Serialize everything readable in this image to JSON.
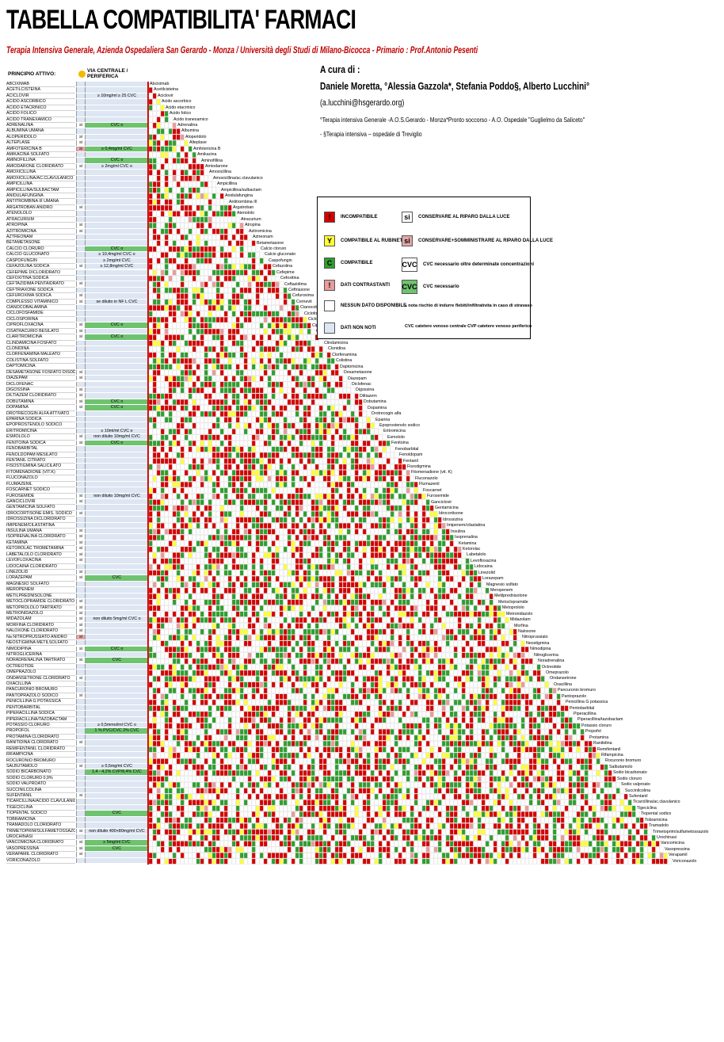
{
  "header": {
    "title": "TABELLA COMPATIBILITA' FARMACI",
    "subtitle": "Terapia Intensiva Generale, Azienda Ospedaliera San Gerardo - Monza / Università degli Studi di Milano-Bicocca - Primario : Prof.Antonio Pesenti"
  },
  "authors": {
    "label": "A cura di  :",
    "names": "Daniele Moretta, °Alessia Gazzola*, Stefania Poddo§, Alberto Lucchini°",
    "email": "(a.lucchini@hsgerardo.org)",
    "affiliation": "°Terapia intensiva Generale -A.O.S.Gerardo - Monza*Pronto soccorso - A.O. Ospedale \"Guglielmo da Saliceto\" - §Terapia intensiva – ospedale di Treviglio"
  },
  "columns": {
    "principle": "PRINCIPIO ATTIVO:",
    "route": "VIA CENTRALE / PERIFERICA"
  },
  "legend": {
    "items": [
      {
        "symbol": "!",
        "text": "INCOMPATIBILE",
        "color": "#d40000"
      },
      {
        "symbol": "Y",
        "text": "COMPATIBILE AL RUBINETTO",
        "color": "#ffff33"
      },
      {
        "symbol": "C",
        "text": "COMPATIBILE",
        "color": "#2e9e2e"
      },
      {
        "symbol": "!",
        "text": "DATI CONTRASTANTI",
        "color": "#e89b9b"
      },
      {
        "symbol": "",
        "text": "NESSUN DATO DISPONIBILE",
        "color": "#ffffff"
      },
      {
        "symbol": "",
        "text": "DATI NON NOTI",
        "color": "#dde6f2"
      },
      {
        "symbol": "si",
        "text": "CONSERVARE AL RIPARO DALLA LUCE",
        "color": "#ffffff"
      },
      {
        "symbol": "si",
        "text": "CONSERVARE+SOMMINISTRARE AL RIPARO DALLA LUCE",
        "color": "#e4a7a7"
      },
      {
        "symbol": "CVC",
        "text": "CVC necessario oltre determinate concentrazioni",
        "color": "#ffffff"
      },
      {
        "symbol": "CVC",
        "text": "CVC necessario",
        "color": "#6fc36f"
      }
    ],
    "note_irritant": "nota rischio di indurre flebiti/infiltrativita in caso di stravaso",
    "note_routes": "CVC catetere venoso centrale     CVP catetere venoso periferico"
  },
  "drugs": [
    {
      "name": "ABCIXIMAB",
      "label": "Abciximab"
    },
    {
      "name": "ACETILCISTEINA",
      "label": "Acetilcisteina"
    },
    {
      "name": "ACICLOVIR",
      "label": "Aciclovir",
      "route": "≥ 10mg/ml ≥ 25 CVC"
    },
    {
      "name": "ACIDO ASCORBICO",
      "label": "Acido ascorbico"
    },
    {
      "name": "ACIDO ETACRINICO",
      "label": "Acido etacrinico"
    },
    {
      "name": "ACIDO FOLICO",
      "label": "Acido folico"
    },
    {
      "name": "ACIDO TRANEXAMICO",
      "label": "Acido tranexamico"
    },
    {
      "name": "ADRENALINA",
      "label": "Adrenalina",
      "light": "si",
      "route": "CVC o",
      "cvc": true
    },
    {
      "name": "ALBUMINA UMANA",
      "label": "Albumina"
    },
    {
      "name": "ALOPERIDOLO",
      "label": "Aloperidolo",
      "light": "si"
    },
    {
      "name": "ALTEPLASE",
      "label": "Alteplase",
      "light": "si"
    },
    {
      "name": "AMFOTERICINA B",
      "label": "Amfotericina B",
      "light": "si",
      "lightp": true,
      "route": "≥ 0,4mg/ml CVC",
      "cvc": true
    },
    {
      "name": "AMIKACINA SOLFATO",
      "label": "Amikacina"
    },
    {
      "name": "AMINOFILLINA",
      "label": "Aminofillina",
      "route": "CVC o",
      "cvc": true
    },
    {
      "name": "AMIODARONE CLORIDRATO",
      "label": "Amiodarone",
      "light": "si",
      "route": "≥ 2mg/ml CVC o"
    },
    {
      "name": "AMOXICILLINA",
      "label": "Amoxicillina"
    },
    {
      "name": "AMOXICILLINA/AC.CLAVULANICO",
      "label": "Amoxicillina/ac.clavulanico"
    },
    {
      "name": "AMPICILLINA",
      "label": "Ampicillina"
    },
    {
      "name": "AMPICILLINA/SULBACTAM",
      "label": "Ampicillina/sulbactam"
    },
    {
      "name": "ANIDULAFUNGINA",
      "label": "Anidulafungina"
    },
    {
      "name": "ANTITROMBINA III UMANA",
      "label": "Antitrombina III"
    },
    {
      "name": "ARGATROBAN ANIDRO",
      "label": "Argatroban",
      "light": "si"
    },
    {
      "name": "ATENOLOLO",
      "label": "Atenololo"
    },
    {
      "name": "ATRACURIUM",
      "label": "Atracurium"
    },
    {
      "name": "ATROPINA",
      "label": "Atropina",
      "light": "si"
    },
    {
      "name": "AZITROMICINA",
      "label": "Azitromicina",
      "light": "si"
    },
    {
      "name": "AZTREONAM",
      "label": "Aztreonam"
    },
    {
      "name": "BETAMETASONE",
      "label": "Betametasone"
    },
    {
      "name": "CALCIO CLORURO",
      "label": "Calcio cloruro",
      "route": "CVC o",
      "cvc": true
    },
    {
      "name": "CALCIO GLUCONATO",
      "label": "Calcio gluconato",
      "route": "≥ 10,4mg/ml CVC o"
    },
    {
      "name": "CASPOFUNGIN",
      "label": "Caspofungin",
      "route": "≥ 2mg/ml CVC"
    },
    {
      "name": "CEFAZOLINA SODICA",
      "label": "Cefazolina",
      "light": "si",
      "route": "≥ 12,8mg/ml CVC"
    },
    {
      "name": "CEFEPIME DICLORIDRATO",
      "label": "Cefepime"
    },
    {
      "name": "CEFOXITINA SODICA",
      "label": "Cefoxitina"
    },
    {
      "name": "CEFTAZIDIMA PENTAIDRATO",
      "label": "Ceftazidima",
      "light": "si"
    },
    {
      "name": "CEFTRIAXONE SODICA",
      "label": "Ceftriaxone"
    },
    {
      "name": "CEFUROXIMA SODICA",
      "label": "Cefuroxima",
      "light": "si"
    },
    {
      "name": "COMPLESSO VITAMINICO",
      "label": "Cernevit",
      "light": "si",
      "route": "se diluito in NF L CVC"
    },
    {
      "name": "CIANOCOBALAMINA",
      "label": "Cianocobalamina"
    },
    {
      "name": "CICLOFOSFAMIDE",
      "label": "Ciclofosfamide"
    },
    {
      "name": "CICLOSPORINA",
      "label": "Ciclosporina"
    },
    {
      "name": "CIPROFLOXACINA",
      "label": "Ciprofloxacina",
      "light": "si",
      "route": "CVC o",
      "cvc": true
    },
    {
      "name": "CISATRACURIO BESILATO",
      "label": "Cisatracurio",
      "light": "si"
    },
    {
      "name": "CLARITROMICINA",
      "label": "Claritromicina",
      "light": "si",
      "route": "CVC o",
      "cvc": true
    },
    {
      "name": "CLINDAMICINA FOSFATO",
      "label": "Clindamicina"
    },
    {
      "name": "CLONIDINA",
      "label": "Clonidina"
    },
    {
      "name": "CLORFENAMINA MALEATO",
      "label": "Clorfenamina"
    },
    {
      "name": "COLISTINA SOLFATO",
      "label": "Colistina"
    },
    {
      "name": "DAPTOMICINA",
      "label": "Daptomicina"
    },
    {
      "name": "DESAMETASONE FOSFATO DISODICO",
      "label": "Desametasone",
      "light": "si"
    },
    {
      "name": "DIAZEPAM",
      "label": "Diazepam",
      "light": "si"
    },
    {
      "name": "DICLOFENAC",
      "label": "Diclofenac"
    },
    {
      "name": "DIGOSSINA",
      "label": "Digossina",
      "light": "si"
    },
    {
      "name": "DILTIAZEM CLORIDRATO",
      "label": "Diltiazem",
      "light": "si"
    },
    {
      "name": "DOBUTAMINA",
      "label": "Dobutamina",
      "light": "si",
      "route": "CVC o",
      "cvc": true
    },
    {
      "name": "DOPAMINA",
      "label": "Dopamina",
      "light": "si",
      "route": "CVC o",
      "cvc": true
    },
    {
      "name": "DROTRECOGIN ALFA ATTIVATO",
      "label": "Drotrecogin alfa"
    },
    {
      "name": "EPARINA SODICA",
      "label": "Eparina"
    },
    {
      "name": "EPOPROSTENOLO SODICO",
      "label": "Epoprostenolo sodico"
    },
    {
      "name": "ERITROMICINA",
      "label": "Eritromicina",
      "route": "≥ 10ml/ml CVC o"
    },
    {
      "name": "ESMOLOLO",
      "label": "Esmololo",
      "light": "si",
      "route": "non diluito 10mg/ml CVC"
    },
    {
      "name": "FENITOINA SODICA",
      "label": "Fenitoina",
      "light": "si",
      "route": "CVC o",
      "cvc": true
    },
    {
      "name": "FENOBARBITAL",
      "label": "Fenobarbital"
    },
    {
      "name": "FENOLDOPAM MESILATO",
      "label": "Fenoldopam"
    },
    {
      "name": "FENTANIL CITRATO",
      "label": "Fentanil"
    },
    {
      "name": "FISOSTIGMINA SALICILATO",
      "label": "Fisostigmina"
    },
    {
      "name": "FITOMENADIONE (VIT.K)",
      "label": "Fitomenadione (vit. K)"
    },
    {
      "name": "FLUCONAZOLO",
      "label": "Fluconazolo"
    },
    {
      "name": "FLUMAZENIL",
      "label": "Flumazenil"
    },
    {
      "name": "FOSCARNET SODICO",
      "label": "Foscarnet"
    },
    {
      "name": "FUROSEMIDE",
      "label": "Furosemide",
      "light": "si",
      "route": "non diluito 10mg/ml CVC"
    },
    {
      "name": "GANCICLOVIR",
      "label": "Ganciclovir",
      "light": "si"
    },
    {
      "name": "GENTAMICINA SOLFATO",
      "label": "Gentamicina"
    },
    {
      "name": "IDROCORTISONE EMIS. SODICO",
      "label": "Idrocortisone",
      "light": "si"
    },
    {
      "name": "IDROSSIZINA DICLORIDRATO",
      "label": "Idrossizina"
    },
    {
      "name": "IMIPENEM/CILASTATINA",
      "label": "Imipenem/cilastatina"
    },
    {
      "name": "INSULINA UMANA",
      "label": "Insulina",
      "light": "si"
    },
    {
      "name": "ISOPRENALINA CLORIDRATO",
      "label": "Isoprenalina",
      "light": "si"
    },
    {
      "name": "KETAMINA",
      "label": "Ketamina",
      "light": "si"
    },
    {
      "name": "KETOROLAC TROMETAMINA",
      "label": "Ketorolac",
      "light": "si"
    },
    {
      "name": "LABETALOLO CLORIDRATO",
      "label": "Labetalolo",
      "light": "si"
    },
    {
      "name": "LEVOFLOXACINA",
      "label": "Levofloxacina",
      "light": "si"
    },
    {
      "name": "LIDOCAINA CLORIDRATO",
      "label": "Lidocaina"
    },
    {
      "name": "LINEZOLID",
      "label": "Linezolid",
      "light": "si"
    },
    {
      "name": "LORAZEPAM",
      "label": "Lorazepam",
      "light": "si",
      "route": "CVC",
      "cvc": true
    },
    {
      "name": "MAGNESIO SOLFATO",
      "label": "Magnesio solfato"
    },
    {
      "name": "MEROPENEM",
      "label": "Meropenem"
    },
    {
      "name": "METILPREDNISOLONE",
      "label": "Metilprednisolone"
    },
    {
      "name": "METOCLOPRAMIDE CLORIDRATO",
      "label": "Metoclopramide",
      "light": "si"
    },
    {
      "name": "METOPROLOLO TARTRATO",
      "label": "Metoprololo",
      "light": "si"
    },
    {
      "name": "METRONIDAZOLO",
      "label": "Metronidazolo",
      "light": "si"
    },
    {
      "name": "MIDAZOLAM",
      "label": "Midazolam",
      "light": "si",
      "route": "non diluito 5mg/ml CVC o"
    },
    {
      "name": "MORFINA CLORIDRATO",
      "label": "Morfina",
      "light": "si"
    },
    {
      "name": "NALOXONE CLORIDRATO",
      "label": "Naloxone",
      "light": "si"
    },
    {
      "name": "Na NITROPRUSSIATO ANIDRO",
      "label": "Nitroprussiato",
      "light": "si",
      "lightp": true
    },
    {
      "name": "NEOSTIGMINA METILSOLFATO",
      "label": "Neostigmina"
    },
    {
      "name": "NIMODIPINA",
      "label": "Nimodipina",
      "light": "si",
      "route": "CVC o",
      "cvc": true
    },
    {
      "name": "NITROGLICERINA",
      "label": "Nitroglicerina"
    },
    {
      "name": "NORADRENALINA TARTRATO",
      "label": "Noradrenalina",
      "light": "si",
      "route": "CVC",
      "cvc": true
    },
    {
      "name": "OCTREOTIDE",
      "label": "Octreotide"
    },
    {
      "name": "OMEPRAZOLO",
      "label": "Omeprazolo"
    },
    {
      "name": "ONDANSETRONE CLORIDRATO",
      "label": "Ondansetrone",
      "light": "si"
    },
    {
      "name": "OXACILLINA",
      "label": "Oxacillina"
    },
    {
      "name": "PANCURONIO BROMURO",
      "label": "Pancuronio bromuro"
    },
    {
      "name": "PANTOPRAZOLO SODICO",
      "label": "Pantoprazolo",
      "light": "si"
    },
    {
      "name": "PENICILLINA G POTASSICA",
      "label": "Penicillina G potassica"
    },
    {
      "name": "PENTOBARBITAL",
      "label": "Pentobarbital"
    },
    {
      "name": "PIPERACILLINA SODICA",
      "label": "Piperacillina"
    },
    {
      "name": "PIPERACILLINA/TAZOBACTAM",
      "label": "Piperacillina/tazobactam"
    },
    {
      "name": "POTASSIO CLORURO",
      "label": "Potassio cloruro",
      "route": "≥ 0,5mmol/ml CVC o"
    },
    {
      "name": "PROPOFOL",
      "label": "Propofol",
      "route": "1 % PVC/CVC     2% CVC",
      "cvc": true
    },
    {
      "name": "PROTAMINA CLORIDRATO",
      "label": "Protamina"
    },
    {
      "name": "RANITIDINA CLORIDRATO",
      "label": "Ranitidina",
      "light": "si"
    },
    {
      "name": "REMIFENTANIL CLORIDRATO",
      "label": "Remifentanil"
    },
    {
      "name": "RIFAMPICINA",
      "label": "Rifampicina"
    },
    {
      "name": "ROCURONIO BROMURO",
      "label": "Rocuronio bromuro"
    },
    {
      "name": "SALBUTAMOLO",
      "label": "Salbutamolo",
      "light": "si",
      "route": "≥ 0,5mg/ml CVC"
    },
    {
      "name": "SODIO BICARBONATO",
      "label": "Sodio bicarbonato",
      "route": "1,4 - 4,2% CVP/8,4% CVC",
      "cvc": true
    },
    {
      "name": "SODIO CLORURO 0,9%",
      "label": "Sodio cloruro"
    },
    {
      "name": "SODIO VALPROATO",
      "label": "Sodio valproato"
    },
    {
      "name": "SUCCINILCOLINA",
      "label": "Succinilcolina"
    },
    {
      "name": "SUFENTANIL",
      "label": "Sufentanil",
      "light": "si"
    },
    {
      "name": "TICARCILLINA/ACIDO CLAVULANICO",
      "label": "Ticarcillina/ac.clavulanico"
    },
    {
      "name": "TIGECICLINA",
      "label": "Tigeciclina"
    },
    {
      "name": "TIOPENTAL SODICO",
      "label": "Tiopental sodico",
      "route": "CVC",
      "cvc": true
    },
    {
      "name": "TOBRAMICINA",
      "label": "Tobramicina"
    },
    {
      "name": "TRAMADOLO CLORIDRATO",
      "label": "Tramadolo"
    },
    {
      "name": "TRIMETOPRIM/SULFAMETOSSAZOLO",
      "label": "Trimetoprim/sulfametossazolo",
      "light": "si",
      "route": "non diluito 400+80mg/ml CVC"
    },
    {
      "name": "UROCHINASI",
      "label": "Urochinasi"
    },
    {
      "name": "VANCOMICINA CLORIDRATO",
      "label": "Vancomicina",
      "light": "si",
      "route": "≥ 5mg/ml CVC",
      "cvc": true
    },
    {
      "name": "VASOPRESSINA",
      "label": "Vasopressina",
      "light": "si",
      "route": "CVC",
      "cvc": true
    },
    {
      "name": "VERAPAMIL CLORIDRATO",
      "label": "Verapamil",
      "light": "si"
    },
    {
      "name": "VORICONAZOLO",
      "label": "Voriconazolo"
    }
  ],
  "colors": {
    "incompatible": "#d40000",
    "compatible": "#2e9e2e",
    "y_site": "#ffff33",
    "conflicting": "#e89b9b",
    "unknown": "#dde6f2"
  }
}
